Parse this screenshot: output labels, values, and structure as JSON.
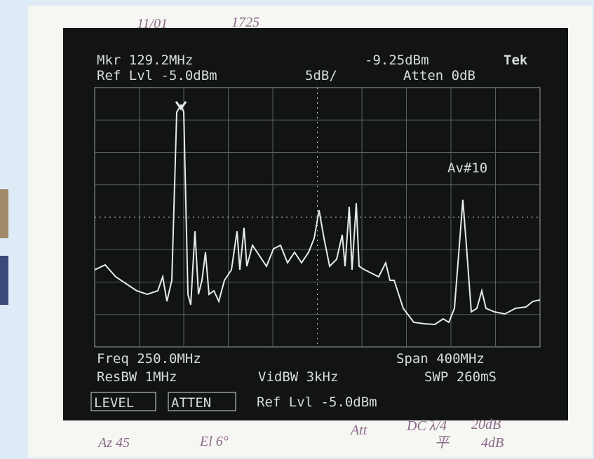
{
  "notes": {
    "date": "11/01",
    "time": "1725",
    "azimuth": "Az 45",
    "elevation": "El 6°",
    "att": "Att",
    "dc": "DC λ/4",
    "level_a": "20dB",
    "mark": "平",
    "level_b": "4dB"
  },
  "screen": {
    "marker_freq": "Mkr 129.2MHz",
    "marker_level": "-9.25dBm",
    "brand": "Tek",
    "ref_level": "Ref Lvl -5.0dBm",
    "scale": "5dB/",
    "atten": "Atten 0dB",
    "average": "Av#10",
    "center_freq": "Freq 250.0MHz",
    "span": "Span 400MHz",
    "res_bw": "ResBW 1MHz",
    "vid_bw": "VidBW 3kHz",
    "sweep": "SWP 260mS",
    "softkeys": [
      "LEVEL",
      "ATTEN"
    ],
    "entry": "Ref Lvl -5.0dBm"
  }
}
